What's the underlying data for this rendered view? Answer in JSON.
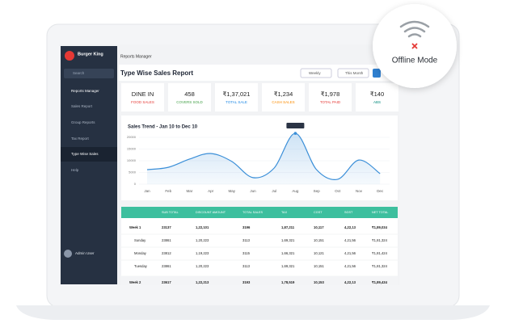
{
  "badge": "Offline Mode",
  "sidebar": {
    "brand": "Burger King",
    "search": "Search",
    "items": [
      "Reports Manager",
      "Sales Report",
      "Group Reports",
      "Tax Report",
      "Type Wise Sales",
      "Help"
    ],
    "user": "Admin User"
  },
  "header": {
    "breadcrumb": "Reports Manager",
    "title": "Type Wise Sales Report",
    "filters": [
      "Weekly",
      "This Month"
    ]
  },
  "cards": [
    {
      "value": "DINE IN",
      "label": "FOOD SALES",
      "color": "#e53935"
    },
    {
      "value": "458",
      "label": "COVERS SOLD",
      "color": "#43a047"
    },
    {
      "value": "₹1,37,021",
      "label": "TOTAL SALE",
      "color": "#1e88e5"
    },
    {
      "value": "₹1,234",
      "label": "CASH SALES",
      "color": "#fb8c00"
    },
    {
      "value": "₹1,978",
      "label": "TOTAL PAID",
      "color": "#e53935"
    },
    {
      "value": "₹140",
      "label": "ABS",
      "color": "#00897b"
    }
  ],
  "trend": {
    "type": "line",
    "title": "Sales Trend - Jan 10 to Dec 10",
    "categories": [
      "Jan",
      "Feb",
      "Mar",
      "Apr",
      "May",
      "Jun",
      "Jul",
      "Aug",
      "Sep",
      "Oct",
      "Nov",
      "Dec"
    ],
    "values": [
      6200,
      7200,
      10700,
      13100,
      9700,
      2800,
      6900,
      21700,
      6200,
      2100,
      10300,
      4500
    ],
    "ylim": [
      0,
      24000
    ],
    "yticks": [
      0,
      5000,
      10000,
      15000,
      20000
    ],
    "color": "#3b8fd8"
  },
  "table": {
    "columns": [
      "SUB TOTAL",
      "DISCOUNT AMOUNT",
      "TOTAL SALES",
      "TAX",
      "CGST",
      "SGST",
      "NET TOTAL"
    ],
    "rows": [
      [
        "Week 1",
        "23137",
        "1,22,101",
        "3196",
        "1,87,211",
        "10,117",
        "4,22,13",
        "₹1,89,034"
      ],
      [
        "Sunday",
        "23861",
        "1,20,223",
        "3113",
        "1,69,321",
        "10,151",
        "4,21,56",
        "₹1,81,324"
      ],
      [
        "Monday",
        "23812",
        "1,19,223",
        "3115",
        "1,66,321",
        "10,121",
        "4,21,56",
        "₹1,81,424"
      ],
      [
        "Tuesday",
        "23861",
        "1,20,223",
        "3113",
        "1,69,321",
        "10,151",
        "4,21,56",
        "₹1,81,324"
      ],
      [
        "Week 2",
        "23617",
        "1,22,213",
        "3193",
        "1,78,519",
        "10,153",
        "4,22,13",
        "₹1,89,434"
      ]
    ]
  }
}
